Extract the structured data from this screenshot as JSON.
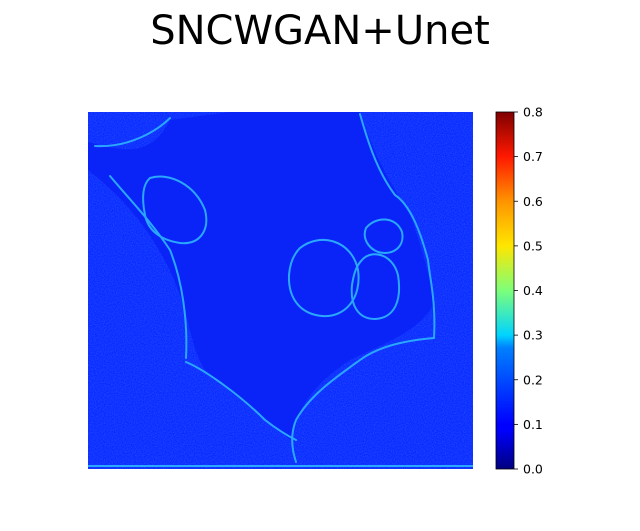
{
  "chart_data": {
    "type": "heatmap",
    "title": "SNCWGAN+Unet",
    "colormap": "jet",
    "value_range": [
      0.0,
      0.8
    ],
    "grid": false,
    "axes": "off",
    "background_value": 0.1,
    "colorbar": {
      "placement": "right",
      "min": 0.0,
      "max": 0.8,
      "ticks": [
        {
          "value": 0.0,
          "label": "0.0"
        },
        {
          "value": 0.1,
          "label": "0.1"
        },
        {
          "value": 0.2,
          "label": "0.2"
        },
        {
          "value": 0.3,
          "label": "0.3"
        },
        {
          "value": 0.4,
          "label": "0.4"
        },
        {
          "value": 0.5,
          "label": "0.5"
        },
        {
          "value": 0.6,
          "label": "0.6"
        },
        {
          "value": 0.7,
          "label": "0.7"
        },
        {
          "value": 0.8,
          "label": "0.8"
        }
      ]
    }
  }
}
